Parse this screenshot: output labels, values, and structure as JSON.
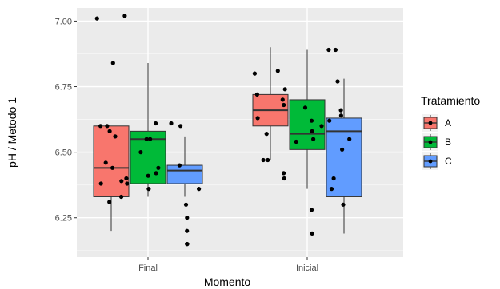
{
  "chart_data": {
    "type": "boxplot",
    "title": "",
    "xlabel": "Momento",
    "ylabel": "pH / Metodo 1",
    "categories": [
      "Final",
      "Inicial"
    ],
    "ylim": [
      6.1,
      7.05
    ],
    "yticks": [
      6.25,
      6.5,
      6.75,
      7.0
    ],
    "ytick_labels": [
      "6.25",
      "6.50",
      "6.75",
      "7.00"
    ],
    "grid": true,
    "legend": {
      "title": "Tratamiento",
      "position": "right"
    },
    "series": [
      {
        "name": "A",
        "color": "#F8766D",
        "boxes": [
          {
            "category": "Final",
            "min": 6.2,
            "q1": 6.33,
            "median": 6.44,
            "q3": 6.6,
            "max": 6.6
          },
          {
            "category": "Inicial",
            "min": 6.47,
            "q1": 6.6,
            "median": 6.66,
            "q3": 6.72,
            "max": 6.9
          }
        ],
        "points": [
          {
            "category": "Final",
            "values": [
              7.02,
              7.01,
              6.84,
              6.6,
              6.58,
              6.56,
              6.6,
              6.46,
              6.44,
              6.4,
              6.39,
              6.38,
              6.38,
              6.33,
              6.31
            ]
          },
          {
            "category": "Inicial",
            "values": [
              6.81,
              6.74,
              6.7,
              6.72,
              6.68,
              6.8,
              6.63,
              6.57,
              6.47,
              6.47,
              6.42,
              6.4
            ]
          }
        ]
      },
      {
        "name": "B",
        "color": "#00BA38",
        "boxes": [
          {
            "category": "Final",
            "min": 6.33,
            "q1": 6.38,
            "median": 6.55,
            "q3": 6.58,
            "max": 6.84
          },
          {
            "category": "Inicial",
            "min": 6.36,
            "q1": 6.51,
            "median": 6.57,
            "q3": 6.7,
            "max": 6.89
          }
        ],
        "points": [
          {
            "category": "Final",
            "values": [
              6.61,
              6.55,
              6.55,
              6.5,
              6.44,
              6.42,
              6.41,
              6.36
            ]
          },
          {
            "category": "Inicial",
            "values": [
              6.67,
              6.62,
              6.6,
              6.58,
              6.55,
              6.54,
              6.28,
              6.19
            ]
          }
        ]
      },
      {
        "name": "C",
        "color": "#619CFF",
        "boxes": [
          {
            "category": "Final",
            "min": 6.33,
            "q1": 6.38,
            "median": 6.43,
            "q3": 6.45,
            "max": 6.56
          },
          {
            "category": "Inicial",
            "min": 6.19,
            "q1": 6.33,
            "median": 6.58,
            "q3": 6.63,
            "max": 6.78
          }
        ],
        "points": [
          {
            "category": "Final",
            "values": [
              6.61,
              6.6,
              6.45,
              6.36,
              6.3,
              6.25,
              6.2,
              6.15,
              6.15
            ]
          },
          {
            "category": "Inicial",
            "values": [
              6.89,
              6.89,
              6.77,
              6.66,
              6.64,
              6.62,
              6.55,
              6.51,
              6.4,
              6.36,
              6.3
            ]
          }
        ]
      }
    ]
  }
}
